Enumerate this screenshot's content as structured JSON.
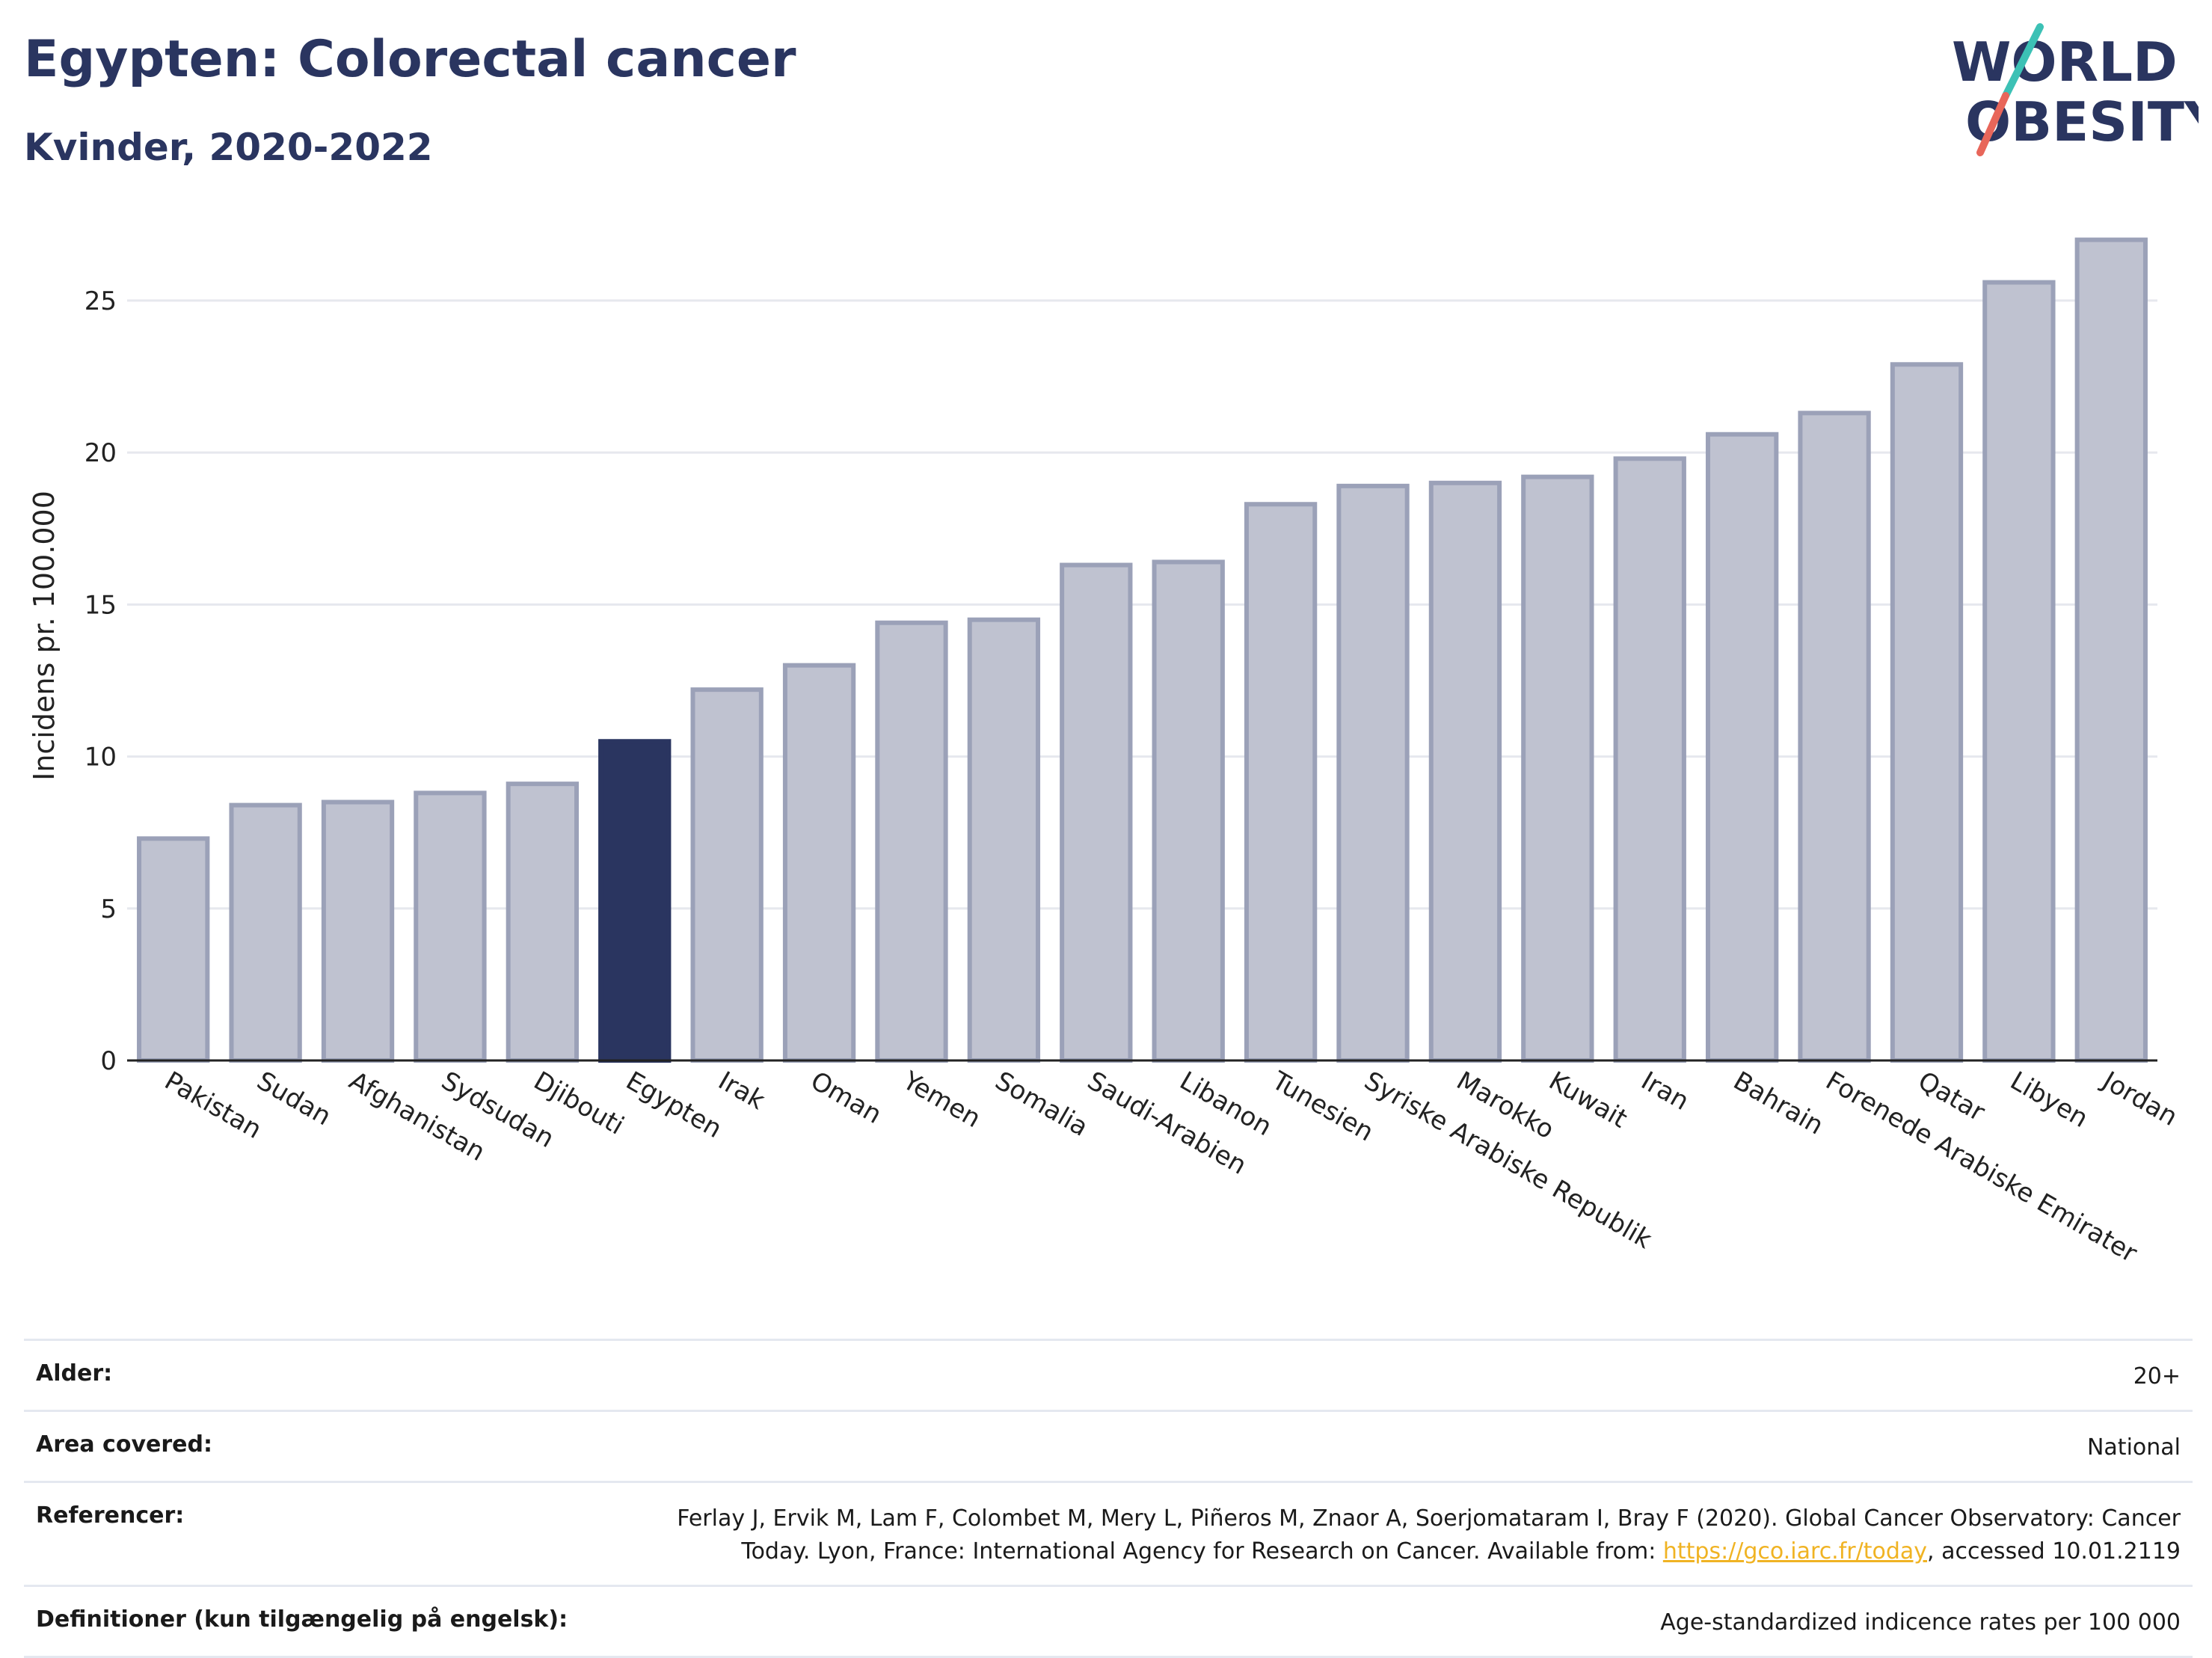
{
  "header": {
    "title": "Egypten: Colorectal cancer",
    "subtitle": "Kvinder, 2020-2022"
  },
  "logo": {
    "line1": "WORLD",
    "line2": "OBESITY",
    "icon": "world-obesity-logo",
    "colors": {
      "text": "#2a3560",
      "slash_top": "#3cc1b5",
      "slash_bottom": "#e8665a"
    }
  },
  "chart_data": {
    "type": "bar",
    "title": "",
    "xlabel": "",
    "ylabel": "Incidens pr. 100.000",
    "ylim": [
      0,
      28
    ],
    "yticks": [
      0,
      5,
      10,
      15,
      20,
      25
    ],
    "grid": true,
    "highlight": "Egypten",
    "colors": {
      "bar": "#bfc2d0",
      "bar_border": "#9ba1b8",
      "highlight": "#2a3560",
      "grid": "#e6e8ee"
    },
    "categories": [
      "Pakistan",
      "Sudan",
      "Afghanistan",
      "Sydsudan",
      "Djibouti",
      "Egypten",
      "Irak",
      "Oman",
      "Yemen",
      "Somalia",
      "Saudi-Arabien",
      "Libanon",
      "Tunesien",
      "Syriske Arabiske Republik",
      "Marokko",
      "Kuwait",
      "Iran",
      "Bahrain",
      "Forenede Arabiske Emirater",
      "Qatar",
      "Libyen",
      "Jordan"
    ],
    "values": [
      7.3,
      8.4,
      8.5,
      8.8,
      9.1,
      10.5,
      12.2,
      13.0,
      14.4,
      14.5,
      16.3,
      16.4,
      18.3,
      18.9,
      19.0,
      19.2,
      19.8,
      20.6,
      21.3,
      22.9,
      25.6,
      27.0
    ]
  },
  "info": {
    "rows": [
      {
        "label": "Alder:",
        "value": "20+"
      },
      {
        "label": "Area covered:",
        "value": "National"
      },
      {
        "label": "Referencer:",
        "value_before": "Ferlay J, Ervik M, Lam F, Colombet M, Mery L, Piñeros M, Znaor A, Soerjomataram I, Bray F (2020). Global Cancer Observatory: Cancer Today. Lyon, France: International Agency for Research on Cancer. Available from: ",
        "link": "https://gco.iarc.fr/today",
        "value_after": ", accessed 10.01.2119"
      },
      {
        "label": "Definitioner (kun tilgængelig på engelsk):",
        "value": "Age-standardized indicence rates per 100 000"
      }
    ]
  }
}
